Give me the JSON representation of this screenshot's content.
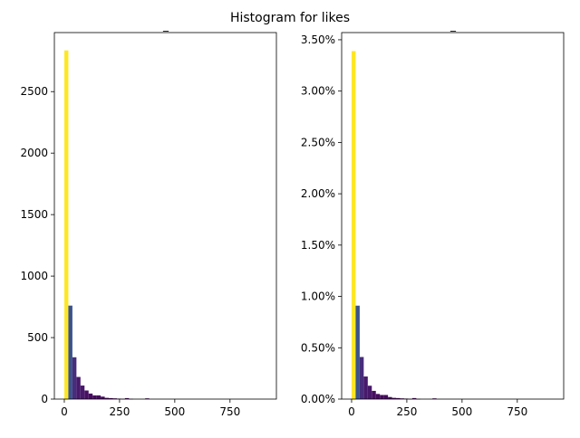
{
  "figure_title": "Histogram for likes",
  "chart_data": [
    {
      "type": "bar",
      "title": "_",
      "xlabel": "",
      "ylabel": "",
      "x_ticks": [
        0,
        250,
        500,
        750
      ],
      "x_tick_labels": [
        "0",
        "250",
        "500",
        "750"
      ],
      "xlim": [
        -45,
        960
      ],
      "y_ticks": [
        0,
        500,
        1000,
        1500,
        2000,
        2500
      ],
      "y_tick_labels": [
        "0",
        "500",
        "1000",
        "1500",
        "2000",
        "2500"
      ],
      "ylim": [
        0,
        2980
      ],
      "bin_width": 18.3,
      "bin_starts": [
        0,
        18.3,
        36.6,
        54.9,
        73.2,
        91.5,
        109.8,
        128.1,
        146.4,
        164.7,
        183,
        201.3,
        219.6,
        237.9,
        256.2,
        274.5,
        292.8,
        311.1,
        329.4,
        347.7,
        366,
        384.3
      ],
      "values": [
        2835,
        760,
        340,
        180,
        110,
        70,
        45,
        30,
        30,
        20,
        10,
        8,
        6,
        4,
        2,
        8,
        2,
        0,
        0,
        0,
        6,
        0
      ],
      "colors": [
        "#fde725",
        "#3b528b",
        "#472d7b",
        "#481a6c",
        "#48186a",
        "#470e61",
        "#460b5e",
        "#460a5d",
        "#460a5d",
        "#45085b",
        "#440457",
        "#440356",
        "#440356",
        "#440256",
        "#440154",
        "#440356",
        "#440154",
        "#440154",
        "#440154",
        "#440154",
        "#440356",
        "#440154"
      ]
    },
    {
      "type": "bar",
      "title": "_",
      "xlabel": "",
      "ylabel": "",
      "x_ticks": [
        0,
        250,
        500,
        750
      ],
      "x_tick_labels": [
        "0",
        "250",
        "500",
        "750"
      ],
      "xlim": [
        -45,
        960
      ],
      "y_ticks": [
        0,
        0.5,
        1.0,
        1.5,
        2.0,
        2.5,
        3.0,
        3.5
      ],
      "y_tick_labels": [
        "0.00%",
        "0.50%",
        "1.00%",
        "1.50%",
        "2.00%",
        "2.50%",
        "3.00%",
        "3.50%"
      ],
      "ylim": [
        0,
        3.57
      ],
      "bin_width": 18.3,
      "bin_starts": [
        0,
        18.3,
        36.6,
        54.9,
        73.2,
        91.5,
        109.8,
        128.1,
        146.4,
        164.7,
        183,
        201.3,
        219.6,
        237.9,
        256.2,
        274.5,
        292.8,
        311.1,
        329.4,
        347.7,
        366,
        384.3
      ],
      "values": [
        3.39,
        0.91,
        0.41,
        0.22,
        0.13,
        0.08,
        0.05,
        0.04,
        0.04,
        0.02,
        0.012,
        0.01,
        0.007,
        0.005,
        0.002,
        0.01,
        0.002,
        0,
        0,
        0,
        0.007,
        0
      ],
      "colors": [
        "#fde725",
        "#3b528b",
        "#472d7b",
        "#481a6c",
        "#48186a",
        "#470e61",
        "#460b5e",
        "#460a5d",
        "#460a5d",
        "#45085b",
        "#440457",
        "#440356",
        "#440356",
        "#440256",
        "#440154",
        "#440356",
        "#440154",
        "#440154",
        "#440154",
        "#440154",
        "#440356",
        "#440154"
      ]
    }
  ]
}
